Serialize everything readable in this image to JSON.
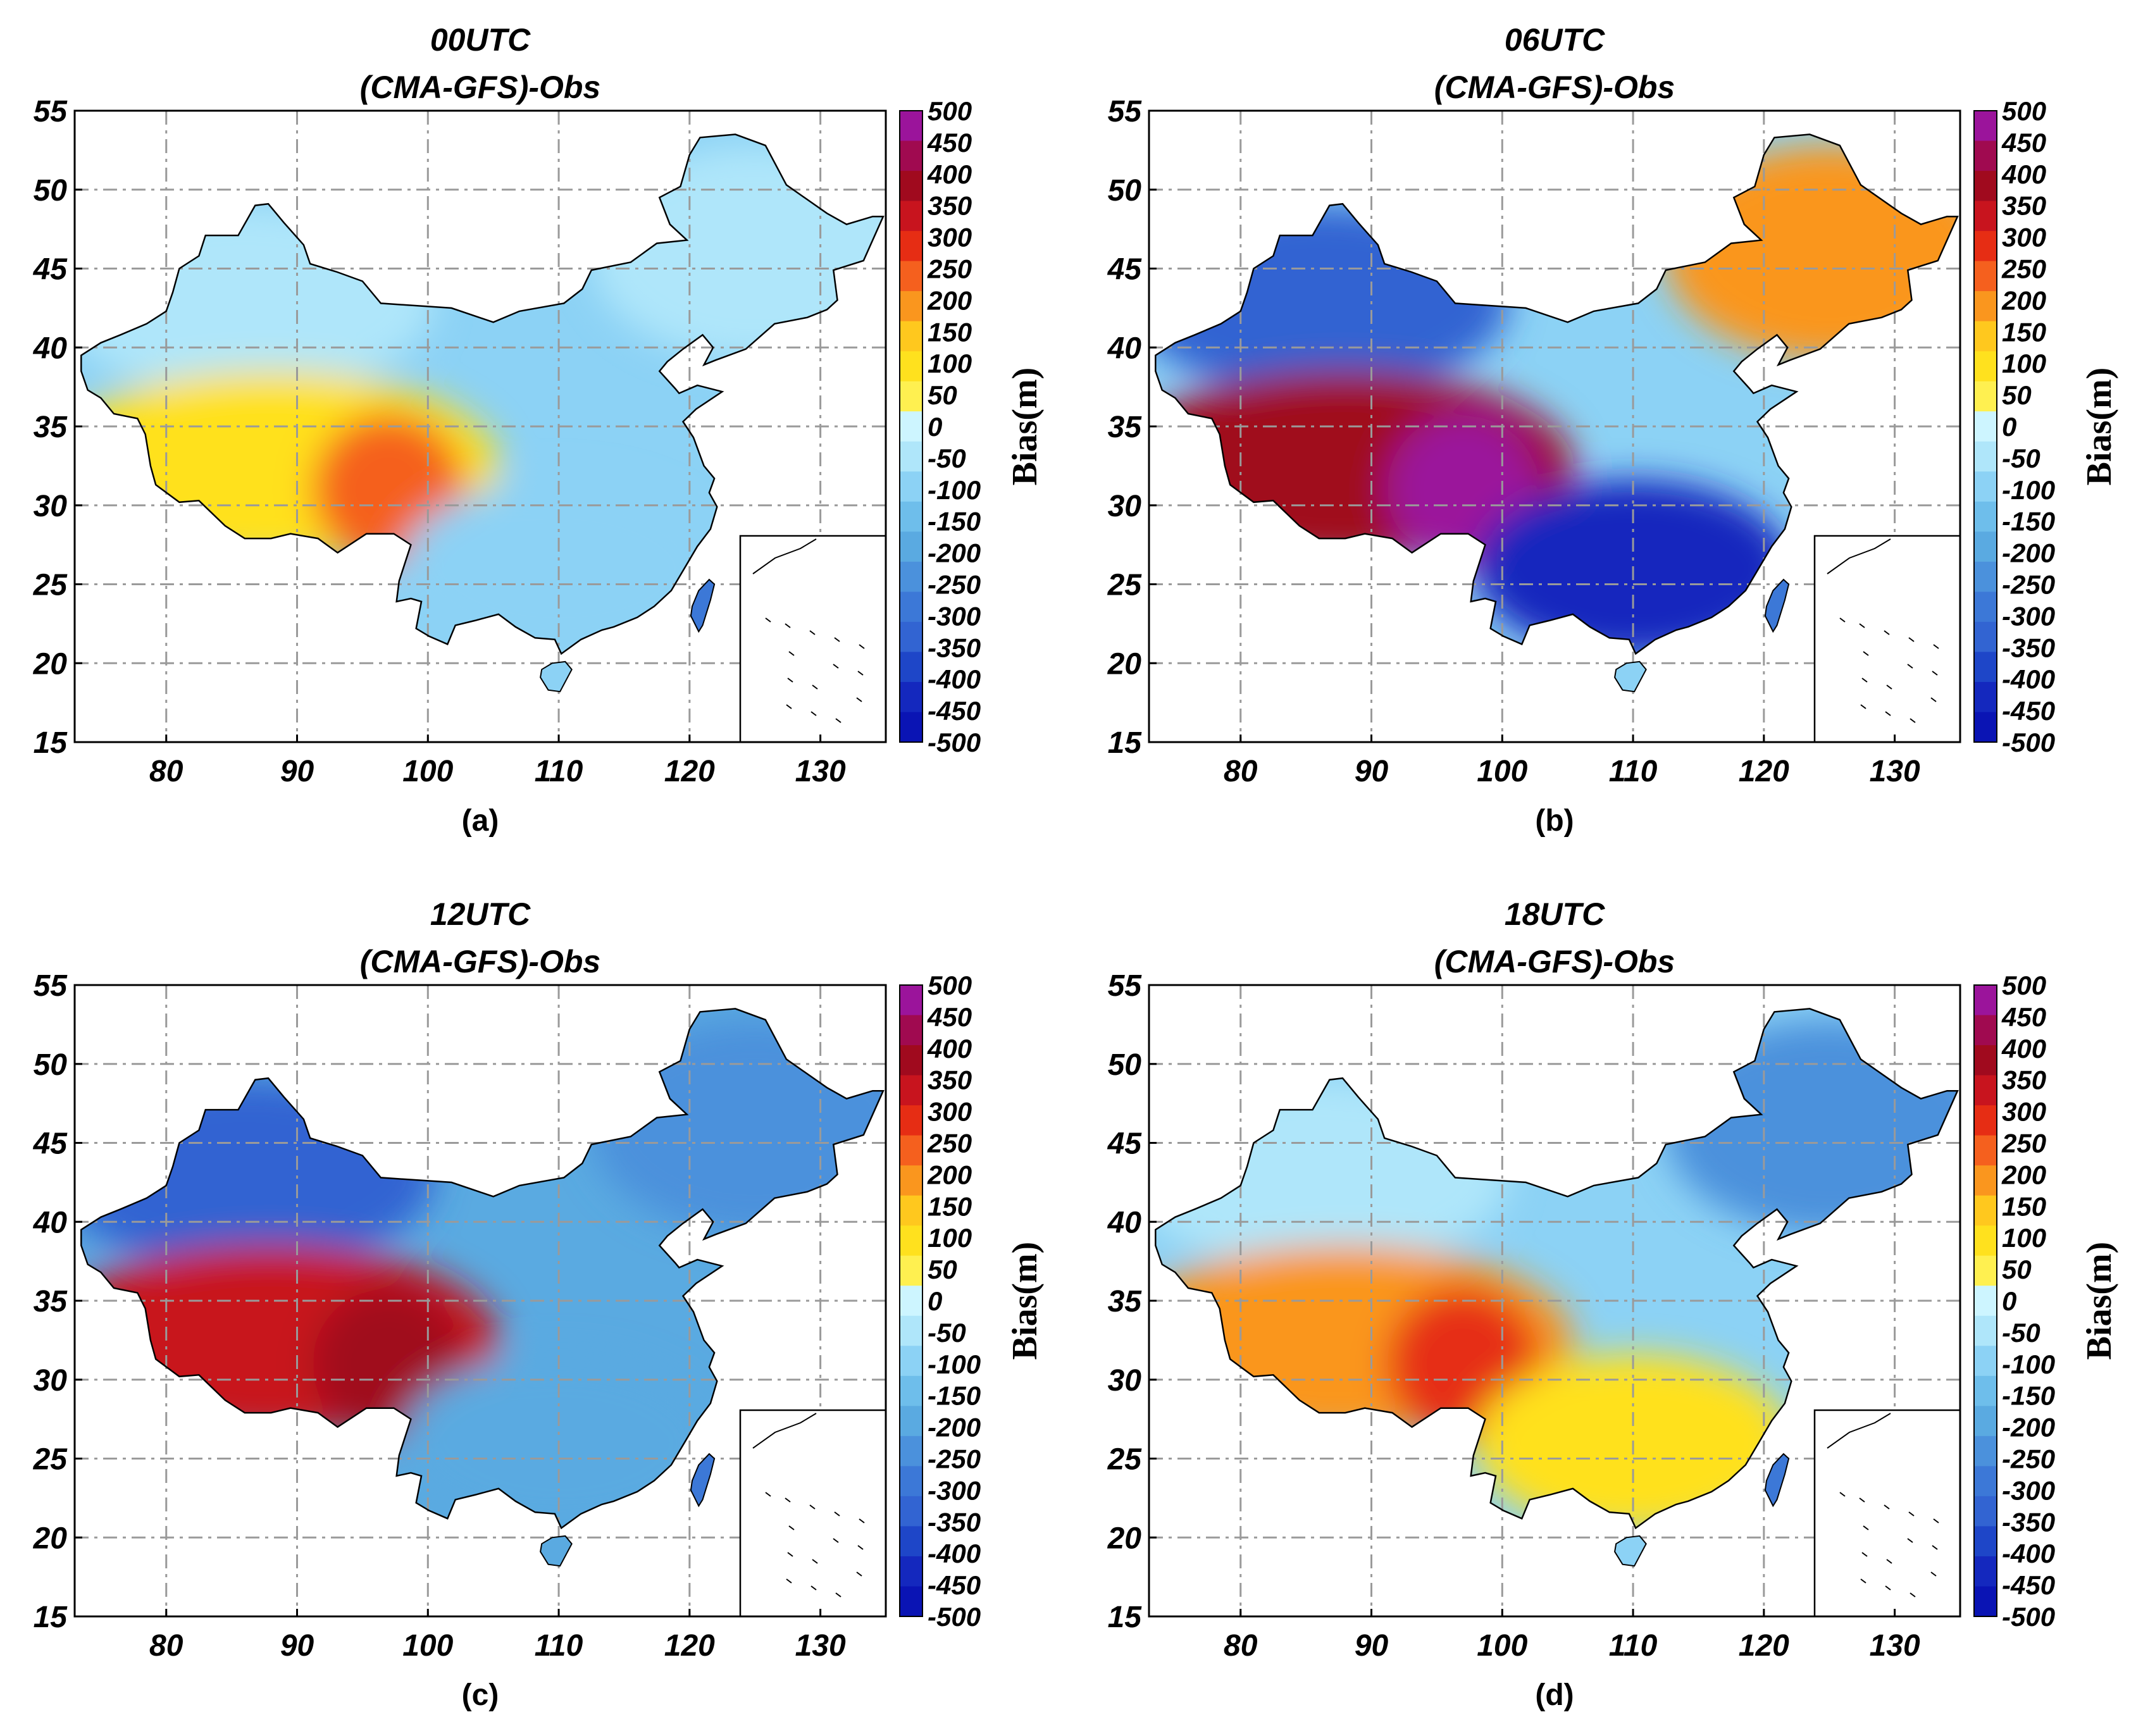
{
  "figure": {
    "colorbar": {
      "levels": [
        "500",
        "450",
        "400",
        "350",
        "300",
        "250",
        "200",
        "150",
        "100",
        "50",
        "0",
        "-50",
        "-100",
        "-150",
        "-200",
        "-250",
        "-300",
        "-350",
        "-400",
        "-450",
        "-500"
      ],
      "colors": [
        "#9b149b",
        "#a00a50",
        "#a00a1e",
        "#c8141e",
        "#e62d14",
        "#f5601e",
        "#fa961e",
        "#ffc81e",
        "#ffe11e",
        "#fff050",
        "#cdf5ff",
        "#afe6fa",
        "#8cd2f5",
        "#6ebeeb",
        "#5aaae1",
        "#4b91dc",
        "#3c78d7",
        "#3264d2",
        "#1e46c8",
        "#1428be",
        "#0a14b4"
      ],
      "label": "Bias(m)"
    },
    "axes": {
      "y_ticks": [
        "55",
        "50",
        "45",
        "40",
        "35",
        "30",
        "25",
        "20",
        "15"
      ],
      "x_ticks": [
        "80",
        "90",
        "100",
        "110",
        "120",
        "130"
      ],
      "lon_range": [
        73,
        135
      ],
      "lat_range": [
        15,
        55
      ]
    },
    "panels": [
      {
        "id": "a",
        "title_line1": "00UTC",
        "title_line2": "(CMA-GFS)-Obs",
        "caption": "(a)",
        "west_color": "#ffe11e",
        "hot_color": "#f5601e",
        "north_color": "#afe6fa",
        "northeast_color": "#afe6fa",
        "east_color": "#8cd2f5",
        "south_color": "#8cd2f5"
      },
      {
        "id": "b",
        "title_line1": "06UTC",
        "title_line2": "(CMA-GFS)-Obs",
        "caption": "(b)",
        "west_color": "#a00a1e",
        "hot_color": "#9b149b",
        "north_color": "#3264d2",
        "northeast_color": "#fa961e",
        "east_color": "#8cd2f5",
        "south_color": "#1428be"
      },
      {
        "id": "c",
        "title_line1": "12UTC",
        "title_line2": "(CMA-GFS)-Obs",
        "caption": "(c)",
        "west_color": "#c8141e",
        "hot_color": "#a00a1e",
        "north_color": "#3264d2",
        "northeast_color": "#4b91dc",
        "east_color": "#5aaae1",
        "south_color": "#5aaae1"
      },
      {
        "id": "d",
        "title_line1": "18UTC",
        "title_line2": "(CMA-GFS)-Obs",
        "caption": "(d)",
        "west_color": "#fa961e",
        "hot_color": "#e62d14",
        "north_color": "#afe6fa",
        "northeast_color": "#4b91dc",
        "east_color": "#8cd2f5",
        "south_color": "#ffe11e"
      }
    ]
  }
}
